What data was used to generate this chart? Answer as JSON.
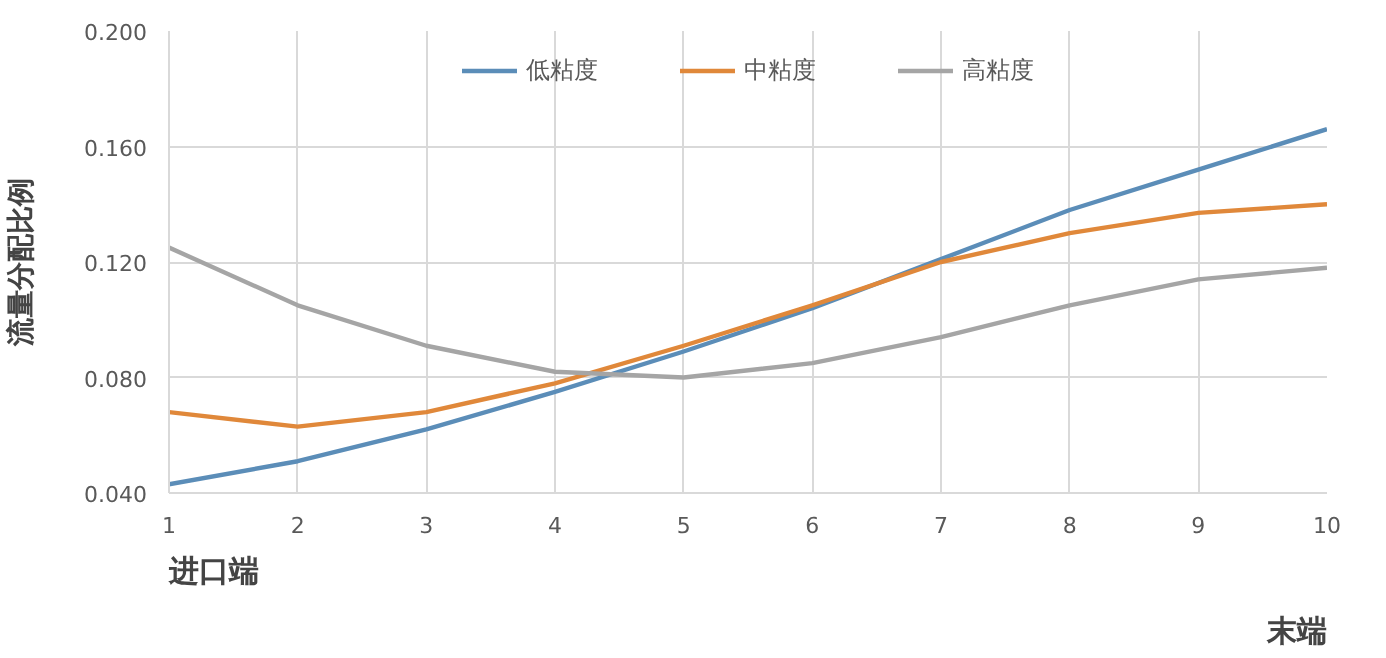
{
  "chart_data": {
    "type": "line",
    "ylabel": "流量分配比例",
    "x": [
      1,
      2,
      3,
      4,
      5,
      6,
      7,
      8,
      9,
      10
    ],
    "xlim": [
      1,
      10
    ],
    "xticks": [
      1,
      2,
      3,
      4,
      5,
      6,
      7,
      8,
      9,
      10
    ],
    "ylim": [
      0.04,
      0.2
    ],
    "yticks": [
      {
        "value": 0.04,
        "label": "0.040"
      },
      {
        "value": 0.08,
        "label": "0.080"
      },
      {
        "value": 0.12,
        "label": "0.120"
      },
      {
        "value": 0.16,
        "label": "0.160"
      },
      {
        "value": 0.2,
        "label": "0.200"
      }
    ],
    "series": [
      {
        "name": "低粘度",
        "color": "#5b8db8",
        "values": [
          0.043,
          0.051,
          0.062,
          0.075,
          0.089,
          0.104,
          0.121,
          0.138,
          0.152,
          0.166
        ]
      },
      {
        "name": "中粘度",
        "color": "#e0883a",
        "values": [
          0.068,
          0.063,
          0.068,
          0.078,
          0.091,
          0.105,
          0.12,
          0.13,
          0.137,
          0.14
        ]
      },
      {
        "name": "高粘度",
        "color": "#a5a5a5",
        "values": [
          0.125,
          0.105,
          0.091,
          0.082,
          0.08,
          0.085,
          0.094,
          0.105,
          0.114,
          0.118
        ]
      }
    ],
    "annotations": [
      "进口端",
      "末端"
    ],
    "grid": true,
    "legend": "top",
    "marker": "none",
    "line_style": "solid"
  }
}
